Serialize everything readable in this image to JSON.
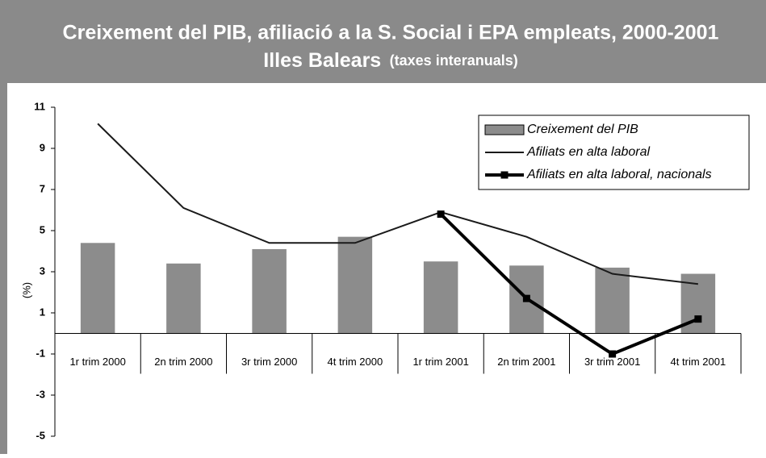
{
  "chart_data": {
    "type": "bar_line",
    "title": "Creixement del PIB, afiliació a la S. Social i EPA empleats, 2000-2001",
    "title2": "Illes Balears",
    "subtitle": "(taxes interanuals)",
    "y_label": "(%)",
    "categories": [
      "1r trim 2000",
      "2n trim 2000",
      "3r trim 2000",
      "4t trim 2000",
      "1r trim 2001",
      "2n trim 2001",
      "3r trim 2001",
      "4t trim 2001"
    ],
    "series": [
      {
        "name": "Creixement del PIB",
        "type": "bar",
        "color": "#8c8c8c",
        "values": [
          4.4,
          3.4,
          4.1,
          4.7,
          3.5,
          3.3,
          3.2,
          2.9
        ]
      },
      {
        "name": "Afiliats en alta laboral",
        "type": "line",
        "color": "#1a1a1a",
        "values": [
          10.2,
          6.1,
          4.4,
          4.4,
          5.9,
          4.7,
          2.9,
          2.4
        ]
      },
      {
        "name": "Afiliats en alta laboral, nacionals",
        "type": "line_marker",
        "color": "#000000",
        "values": [
          null,
          null,
          null,
          null,
          5.8,
          1.7,
          -1.0,
          0.7
        ]
      }
    ],
    "ylim": [
      -5,
      11
    ],
    "yticks": [
      11,
      9,
      7,
      5,
      3,
      1,
      -1,
      -3,
      -5
    ],
    "legend": "top-right"
  }
}
